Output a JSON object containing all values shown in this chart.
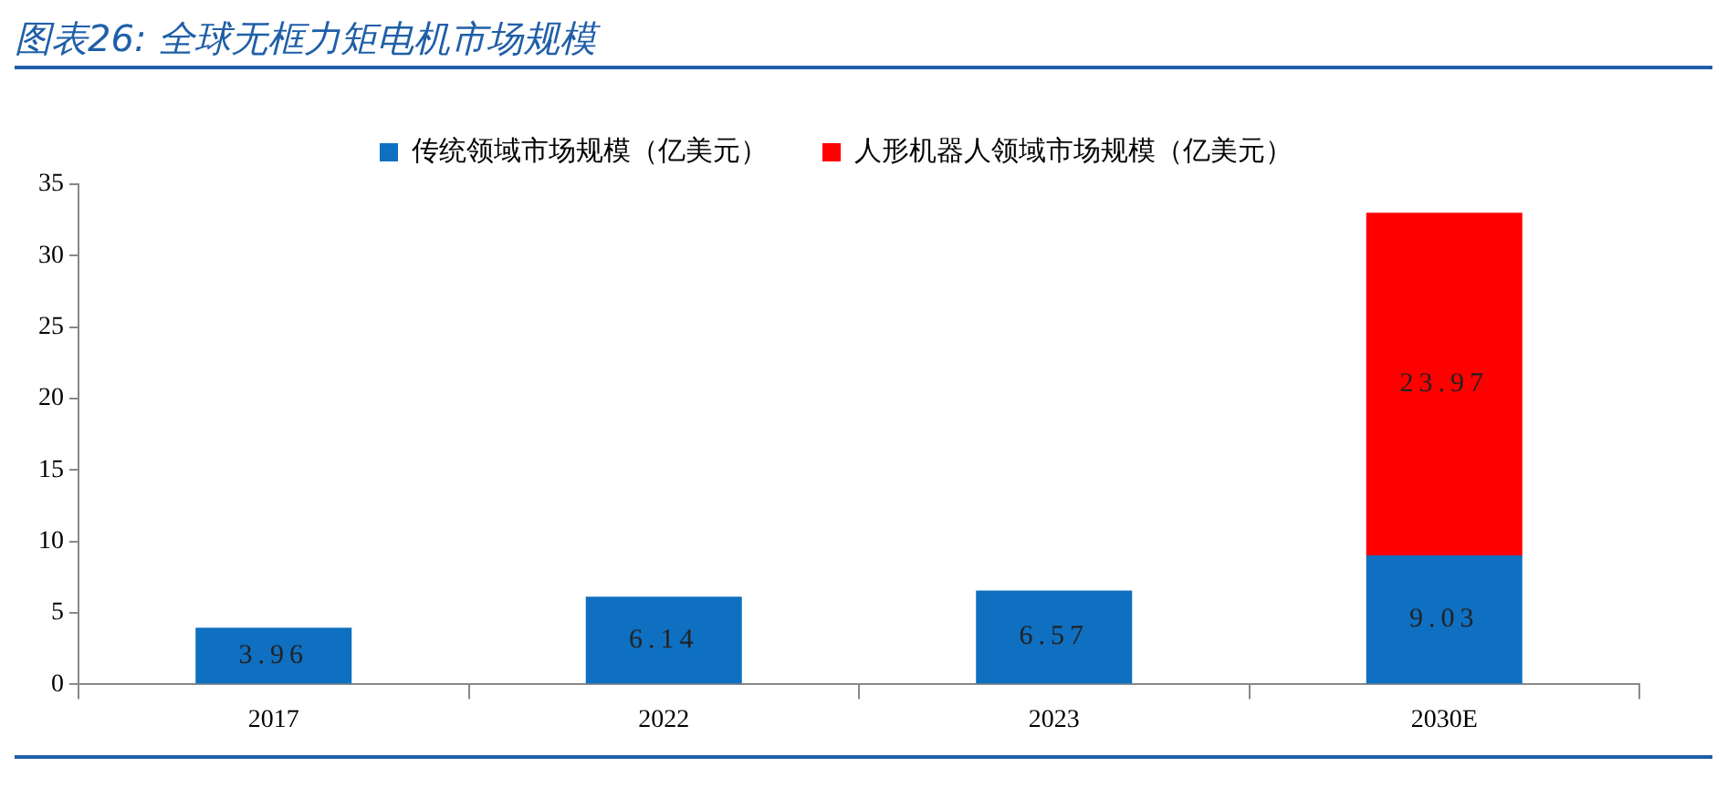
{
  "chart_data": {
    "type": "bar",
    "title": "图表26: 全球无框力矩电机市场规模",
    "categories": [
      "2017",
      "2022",
      "2023",
      "2030E"
    ],
    "stacked": true,
    "legend": "top",
    "data_labels": true,
    "ylim": [
      0,
      35
    ],
    "yticks": [
      0,
      5,
      10,
      15,
      20,
      25,
      30,
      35
    ],
    "series": [
      {
        "name": "传统领域市场规模（亿美元）",
        "color": "#0f6fc0",
        "values": [
          3.96,
          6.14,
          6.57,
          9.03
        ]
      },
      {
        "name": "人形机器人领域市场规模（亿美元）",
        "color": "#ff0000",
        "values": [
          null,
          null,
          null,
          23.97
        ]
      }
    ]
  }
}
